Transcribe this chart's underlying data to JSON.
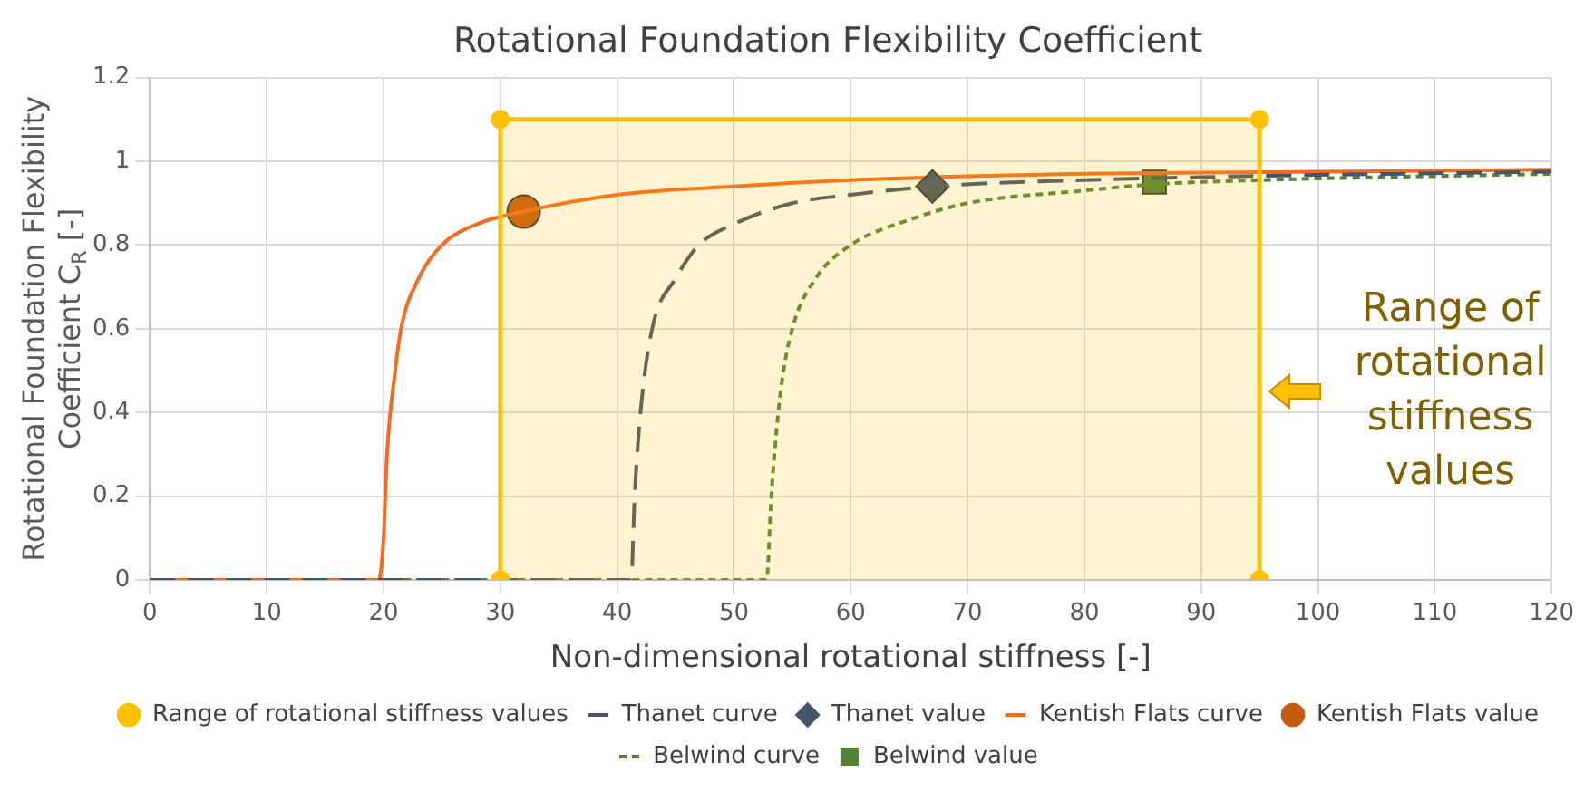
{
  "chart_data": {
    "type": "line",
    "title": "Rotational Foundation Flexibility Coefficient",
    "xlabel": "Non-dimensional rotational stiffness [-]",
    "ylabel": "Rotational Foundation Flexibility Coefficient C$_{R}$ [-]",
    "xlim": [
      0,
      120
    ],
    "xticks": [
      0,
      10,
      20,
      30,
      40,
      50,
      60,
      70,
      80,
      90,
      100,
      110,
      120
    ],
    "ylim": [
      0,
      1.2
    ],
    "yticks": [
      0,
      0.2,
      0.4,
      0.6,
      0.8,
      1,
      1.2
    ],
    "grid": true,
    "legend": "bottom",
    "series": [
      {
        "name": "Range of rotational stiffness values",
        "type": "area",
        "color": "#ffc000",
        "marker": "circle",
        "line_style": "solid",
        "x": [
          30,
          30,
          95,
          95
        ],
        "values": [
          0,
          1.1,
          1.1,
          0
        ]
      },
      {
        "name": "Thanet curve",
        "color": "#44546a",
        "marker": "none",
        "line_style": "dashed",
        "x": [
          0,
          41.2,
          41.5,
          42,
          43,
          45,
          47,
          50,
          55,
          60,
          67,
          80,
          95,
          120
        ],
        "values": [
          0,
          0,
          0.2,
          0.4,
          0.6,
          0.72,
          0.8,
          0.85,
          0.9,
          0.92,
          0.94,
          0.955,
          0.965,
          0.975
        ]
      },
      {
        "name": "Thanet value",
        "type": "scatter",
        "color": "#44546a",
        "marker": "diamond",
        "x": [
          67
        ],
        "values": [
          0.94
        ]
      },
      {
        "name": "Kentish Flats curve",
        "color": "#f26b21",
        "marker": "none",
        "line_style": "solid",
        "x": [
          0,
          19.6,
          20,
          20.3,
          21,
          21.5,
          23,
          25,
          28,
          32,
          40,
          50,
          60,
          80,
          100,
          120
        ],
        "values": [
          0,
          0,
          0.1,
          0.3,
          0.5,
          0.6,
          0.72,
          0.8,
          0.85,
          0.88,
          0.92,
          0.94,
          0.955,
          0.97,
          0.975,
          0.98
        ]
      },
      {
        "name": "Kentish Flats value",
        "type": "scatter",
        "color": "#c55a11",
        "marker": "circle",
        "x": [
          32
        ],
        "values": [
          0.88
        ]
      },
      {
        "name": "Belwind curve",
        "color": "#548235",
        "marker": "none",
        "line_style": "dotted",
        "x": [
          0,
          52.8,
          53.2,
          54,
          55,
          57,
          60,
          65,
          70,
          80,
          86,
          95,
          120
        ],
        "values": [
          0,
          0,
          0.2,
          0.45,
          0.6,
          0.72,
          0.8,
          0.86,
          0.9,
          0.93,
          0.945,
          0.955,
          0.97
        ]
      },
      {
        "name": "Belwind value",
        "type": "scatter",
        "color": "#548235",
        "marker": "square",
        "x": [
          86
        ],
        "values": [
          0.95
        ]
      }
    ],
    "annotations": [
      {
        "text": "Range of rotational stiffness values",
        "x": 95,
        "y": 0.45
      }
    ]
  }
}
